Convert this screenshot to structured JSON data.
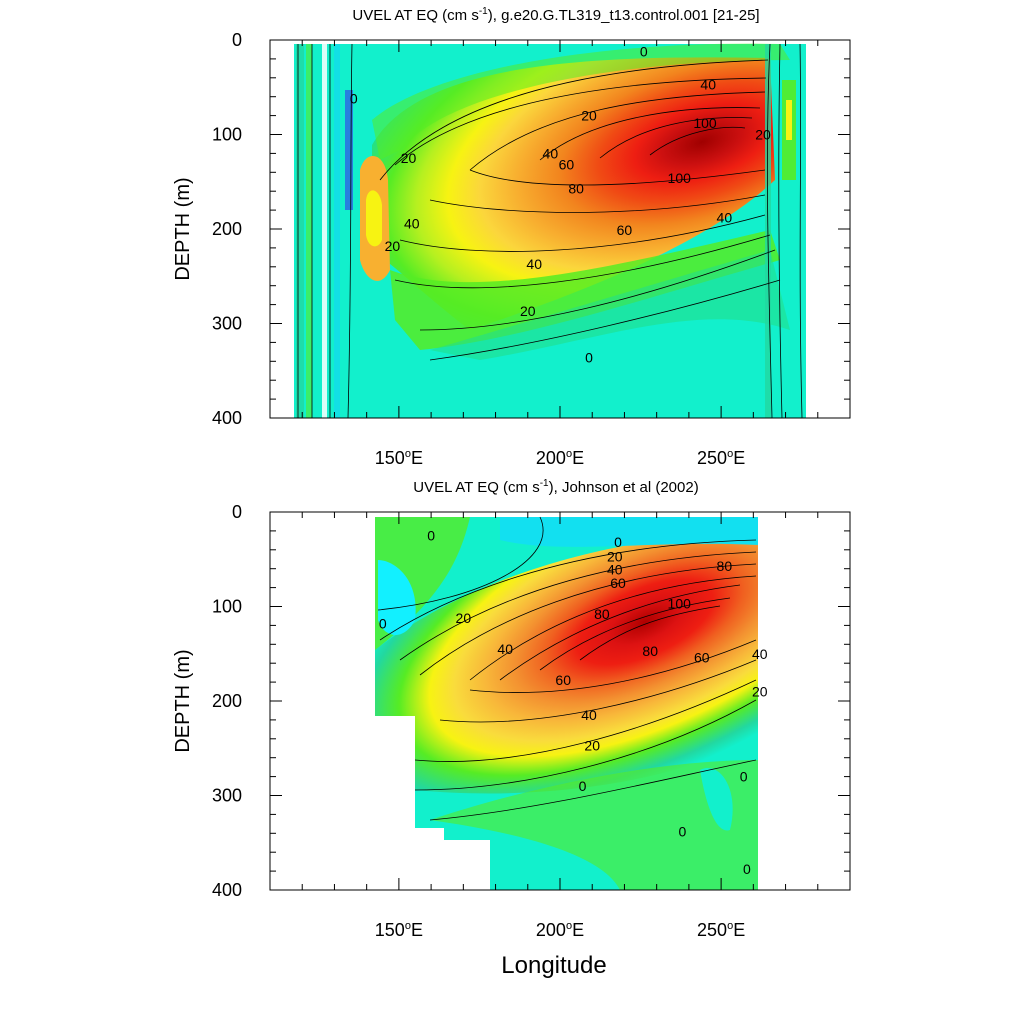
{
  "chart_data": [
    {
      "type": "contour",
      "title_main": "UVEL AT EQ (cm s",
      "title_unit_exp": "-1",
      "title_rest": "), g.e20.G.TL319_t13.control.001 [21-25]",
      "ylabel": "DEPTH (m)",
      "xlabel": "",
      "xlim": [
        110,
        290
      ],
      "ylim": [
        0,
        400
      ],
      "y_ticks": [
        "0",
        "100",
        "200",
        "300",
        "400"
      ],
      "y_tick_values": [
        0,
        100,
        200,
        300,
        400
      ],
      "x_tick_values": [
        150,
        200,
        250
      ],
      "x_ticks": [
        "150",
        "200",
        "250"
      ],
      "x_tick_suffix": "E",
      "data_extent": {
        "lon": [
          119,
          280
        ],
        "depth": [
          5,
          400
        ]
      },
      "core": {
        "lon": 240,
        "depth": 115,
        "max": 110
      },
      "contour_levels": [
        -40,
        -20,
        0,
        20,
        40,
        60,
        80,
        100
      ],
      "contour_labels": [
        {
          "text": "0",
          "lon": 226,
          "depth": 12
        },
        {
          "text": "40",
          "lon": 246,
          "depth": 47
        },
        {
          "text": "0",
          "lon": 136,
          "depth": 62
        },
        {
          "text": "20",
          "lon": 209,
          "depth": 80
        },
        {
          "text": "100",
          "lon": 245,
          "depth": 88
        },
        {
          "text": "20",
          "lon": 263,
          "depth": 100
        },
        {
          "text": "40",
          "lon": 197,
          "depth": 120
        },
        {
          "text": "20",
          "lon": 153,
          "depth": 125
        },
        {
          "text": "60",
          "lon": 202,
          "depth": 132
        },
        {
          "text": "100",
          "lon": 237,
          "depth": 146
        },
        {
          "text": "80",
          "lon": 205,
          "depth": 157
        },
        {
          "text": "40",
          "lon": 251,
          "depth": 188
        },
        {
          "text": "40",
          "lon": 154,
          "depth": 194
        },
        {
          "text": "60",
          "lon": 220,
          "depth": 201
        },
        {
          "text": "20",
          "lon": 148,
          "depth": 218
        },
        {
          "text": "40",
          "lon": 192,
          "depth": 237
        },
        {
          "text": "20",
          "lon": 190,
          "depth": 287
        },
        {
          "text": "0",
          "lon": 209,
          "depth": 336
        }
      ]
    },
    {
      "type": "contour",
      "title_main": "UVEL AT EQ (cm s",
      "title_unit_exp": "-1",
      "title_rest": "), Johnson et al (2002)",
      "ylabel": "DEPTH (m)",
      "xlabel": "Longitude",
      "xlim": [
        110,
        290
      ],
      "ylim": [
        0,
        400
      ],
      "y_ticks": [
        "0",
        "100",
        "200",
        "300",
        "400"
      ],
      "y_tick_values": [
        0,
        100,
        200,
        300,
        400
      ],
      "x_tick_values": [
        150,
        200,
        250
      ],
      "x_ticks": [
        "150",
        "200",
        "250"
      ],
      "x_tick_suffix": "E",
      "data_extent": {
        "lon": [
          143,
          265
        ],
        "depth": [
          5,
          400
        ]
      },
      "core": {
        "lon": 235,
        "depth": 100,
        "max": 105
      },
      "contour_levels": [
        0,
        20,
        40,
        60,
        80,
        100
      ],
      "contour_labels": [
        {
          "text": "0",
          "lon": 160,
          "depth": 25
        },
        {
          "text": "0",
          "lon": 218,
          "depth": 32
        },
        {
          "text": "20",
          "lon": 217,
          "depth": 47
        },
        {
          "text": "40",
          "lon": 217,
          "depth": 61
        },
        {
          "text": "60",
          "lon": 218,
          "depth": 75
        },
        {
          "text": "80",
          "lon": 251,
          "depth": 57
        },
        {
          "text": "20",
          "lon": 170,
          "depth": 112
        },
        {
          "text": "80",
          "lon": 213,
          "depth": 108
        },
        {
          "text": "100",
          "lon": 237,
          "depth": 97
        },
        {
          "text": "0",
          "lon": 145,
          "depth": 118
        },
        {
          "text": "40",
          "lon": 183,
          "depth": 145
        },
        {
          "text": "80",
          "lon": 228,
          "depth": 147
        },
        {
          "text": "60",
          "lon": 244,
          "depth": 154
        },
        {
          "text": "40",
          "lon": 262,
          "depth": 150
        },
        {
          "text": "60",
          "lon": 201,
          "depth": 178
        },
        {
          "text": "20",
          "lon": 262,
          "depth": 190
        },
        {
          "text": "40",
          "lon": 209,
          "depth": 215
        },
        {
          "text": "20",
          "lon": 210,
          "depth": 247
        },
        {
          "text": "0",
          "lon": 207,
          "depth": 290
        },
        {
          "text": "0",
          "lon": 257,
          "depth": 280
        },
        {
          "text": "0",
          "lon": 238,
          "depth": 338
        },
        {
          "text": "0",
          "lon": 258,
          "depth": 378
        }
      ]
    }
  ]
}
